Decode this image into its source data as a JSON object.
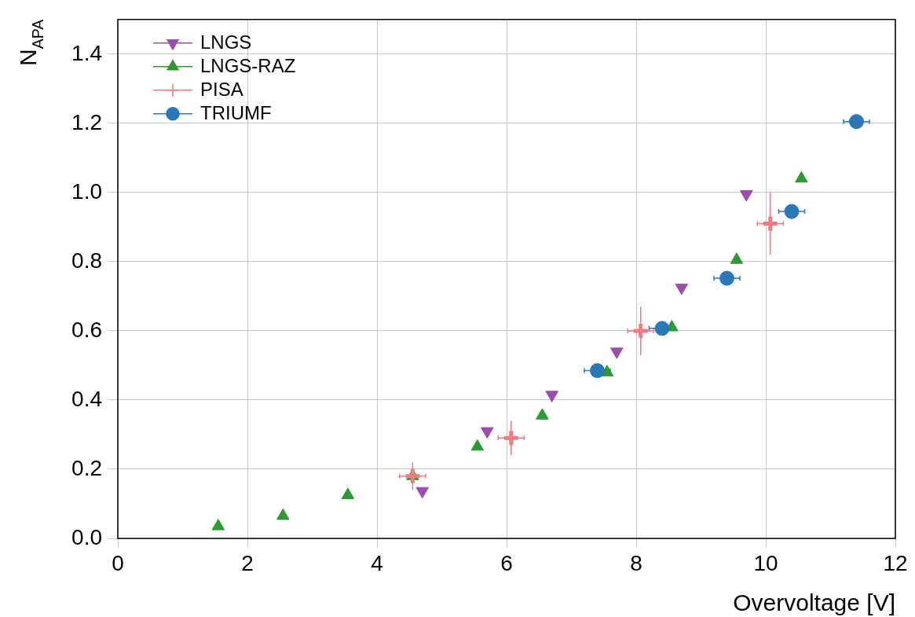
{
  "chart_data": {
    "type": "scatter",
    "xlabel": "Overvoltage [V]",
    "ylabel": "N$_{APA}$",
    "xlim": [
      0,
      12
    ],
    "xticks": [
      0,
      2,
      4,
      6,
      8,
      10,
      12
    ],
    "ylim": [
      0,
      1.5
    ],
    "yticks": [
      {
        "value": 0,
        "label": "0.0"
      },
      0.2,
      0.4,
      0.6,
      0.8,
      {
        "value": 1,
        "label": "1.0"
      },
      1.2,
      1.4
    ],
    "grid": true,
    "legend": "top left",
    "series": [
      {
        "name": "LNGS",
        "color": "#9b4db0",
        "marker": "triangle-down",
        "x": [
          4.7,
          5.7,
          6.7,
          7.7,
          8.7,
          9.7
        ],
        "values": [
          0.137,
          0.31,
          0.415,
          0.54,
          0.725,
          0.995
        ]
      },
      {
        "name": "LNGS-RAZ",
        "color": "#2e9a35",
        "marker": "triangle",
        "x": [
          1.55,
          2.55,
          3.55,
          4.55,
          5.55,
          6.55,
          7.55,
          8.55,
          9.55,
          10.55
        ],
        "values": [
          0.035,
          0.065,
          0.125,
          0.18,
          0.265,
          0.355,
          0.48,
          0.61,
          0.805,
          1.04
        ]
      },
      {
        "name": "PISA",
        "color": "#f07b80",
        "marker": "cross",
        "x": [
          4.55,
          6.07,
          8.07,
          10.07
        ],
        "values": [
          0.18,
          0.29,
          0.6,
          0.91
        ],
        "errors": [
          0.04,
          0.05,
          0.07,
          0.09
        ],
        "xerrors": [
          0.2,
          0.2,
          0.2,
          0.2
        ]
      },
      {
        "name": "TRIUMF",
        "color": "#2a78b8",
        "marker": "circle",
        "x": [
          7.4,
          8.4,
          9.4,
          10.4,
          11.4
        ],
        "values": [
          0.485,
          0.607,
          0.752,
          0.945,
          1.205
        ],
        "errors": [
          0.01,
          0.01,
          0.02,
          0.01,
          0.01
        ],
        "xerrors": [
          0.2,
          0.2,
          0.2,
          0.2,
          0.2
        ]
      }
    ]
  }
}
